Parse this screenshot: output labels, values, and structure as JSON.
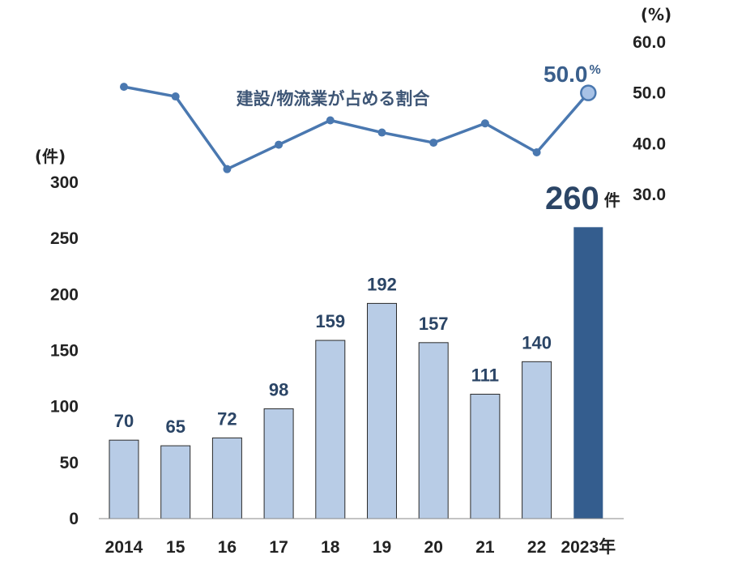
{
  "chart_data": [
    {
      "type": "bar",
      "categories": [
        "2014",
        "15",
        "16",
        "17",
        "18",
        "19",
        "20",
        "21",
        "22",
        "2023年"
      ],
      "values": [
        70,
        65,
        72,
        98,
        159,
        192,
        157,
        111,
        140,
        260
      ],
      "data_labels": [
        "70",
        "65",
        "72",
        "98",
        "159",
        "192",
        "157",
        "111",
        "140",
        "260"
      ],
      "last_value_suffix": "件",
      "ylabel": "(件)",
      "ylim": [
        0,
        300
      ],
      "yticks": [
        "0",
        "50",
        "100",
        "150",
        "200",
        "250",
        "300"
      ],
      "colors": {
        "bar": "#b8cce6",
        "bar_highlight": "#345d8e",
        "bar_stroke": "#2a2a2a"
      }
    },
    {
      "type": "line",
      "categories": [
        "2014",
        "15",
        "16",
        "17",
        "18",
        "19",
        "20",
        "21",
        "22",
        "2023年"
      ],
      "values": [
        51.2,
        49.3,
        35.0,
        39.8,
        44.6,
        42.2,
        40.2,
        44.0,
        38.3,
        50.0
      ],
      "series_label": "建設/物流業が占める割合",
      "highlight_value": "50.0",
      "highlight_unit": "%",
      "ylabel": "(%)",
      "ylim": [
        30,
        60
      ],
      "yticks": [
        "30.0",
        "40.0",
        "50.0",
        "60.0"
      ],
      "colors": {
        "line": "#4a78b0",
        "marker_highlight": "#a8c2e6"
      }
    }
  ]
}
